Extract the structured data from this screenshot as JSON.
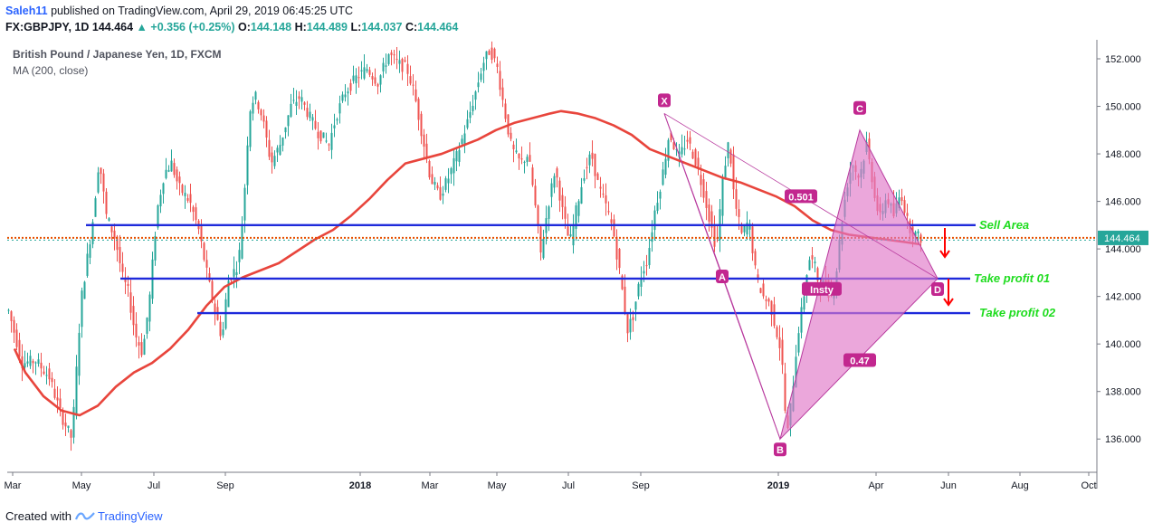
{
  "header": {
    "author": "Saleh11",
    "published_text": "published on TradingView.com, April 29, 2019 06:45:25 UTC",
    "symbol": "FX:GBPJPY, 1D",
    "last": "144.464",
    "change": "+0.356 (+0.25%)",
    "open_label": "O:",
    "open": "144.148",
    "high_label": "H:",
    "high": "144.489",
    "low_label": "L:",
    "low": "144.037",
    "close_label": "C:",
    "close": "144.464"
  },
  "legend": {
    "instrument": "British Pound / Japanese Yen, 1D, FXCM",
    "indicator": "MA (200, close)"
  },
  "footer": {
    "created_with": "Created with",
    "brand": "TradingView"
  },
  "colors": {
    "up_candle": "#26a69a",
    "down_candle": "#ef5350",
    "ma": "#e8453c",
    "level_line": "#1e2adb",
    "pattern_fill": "#e078c8",
    "pattern_stroke": "#b83a9e",
    "label_bg": "#c2278f",
    "annotation_green": "#1fdc1f",
    "price_dotted": "#e65100",
    "price_badge": "#26a69a"
  },
  "chart_data": {
    "type": "candlestick",
    "ylim": [
      134.6,
      152.8
    ],
    "y_ticks": [
      "136.000",
      "138.000",
      "140.000",
      "142.000",
      "144.000",
      "146.000",
      "148.000",
      "150.000",
      "152.000"
    ],
    "x_ticks": [
      "Mar",
      "May",
      "Jul",
      "Sep",
      "2018",
      "Mar",
      "May",
      "Jul",
      "Sep",
      "2019",
      "Apr",
      "Jun",
      "Aug",
      "Oct"
    ],
    "last_price": 144.464,
    "last_price_label": "144.464",
    "price_path": [
      [
        0,
        141.4
      ],
      [
        15,
        139.2
      ],
      [
        30,
        139.3
      ],
      [
        45,
        138.6
      ],
      [
        58,
        137.0
      ],
      [
        70,
        136.0
      ],
      [
        80,
        141.8
      ],
      [
        93,
        145.2
      ],
      [
        100,
        147.8
      ],
      [
        108,
        145.4
      ],
      [
        118,
        144.4
      ],
      [
        126,
        142.8
      ],
      [
        132,
        142.2
      ],
      [
        140,
        140.4
      ],
      [
        148,
        139.6
      ],
      [
        156,
        142.0
      ],
      [
        164,
        145.6
      ],
      [
        172,
        147.2
      ],
      [
        180,
        147.6
      ],
      [
        188,
        146.6
      ],
      [
        200,
        146.0
      ],
      [
        210,
        144.8
      ],
      [
        220,
        142.8
      ],
      [
        228,
        141.4
      ],
      [
        236,
        140.2
      ],
      [
        242,
        142.6
      ],
      [
        248,
        143.0
      ],
      [
        254,
        143.4
      ],
      [
        260,
        146.0
      ],
      [
        266,
        149.8
      ],
      [
        272,
        150.5
      ],
      [
        280,
        149.6
      ],
      [
        290,
        147.6
      ],
      [
        300,
        148.4
      ],
      [
        312,
        150.0
      ],
      [
        322,
        150.4
      ],
      [
        332,
        149.6
      ],
      [
        342,
        148.9
      ],
      [
        354,
        148.4
      ],
      [
        362,
        149.6
      ],
      [
        372,
        150.6
      ],
      [
        384,
        151.2
      ],
      [
        396,
        151.6
      ],
      [
        408,
        151.0
      ],
      [
        420,
        152.2
      ],
      [
        430,
        151.8
      ],
      [
        440,
        151.6
      ],
      [
        448,
        150.6
      ],
      [
        456,
        149.0
      ],
      [
        466,
        147.0
      ],
      [
        476,
        146.2
      ],
      [
        486,
        147.0
      ],
      [
        496,
        148.0
      ],
      [
        506,
        149.2
      ],
      [
        516,
        150.6
      ],
      [
        524,
        151.8
      ],
      [
        532,
        152.4
      ],
      [
        540,
        151.6
      ],
      [
        548,
        149.8
      ],
      [
        556,
        148.2
      ],
      [
        566,
        147.6
      ],
      [
        574,
        148.0
      ],
      [
        580,
        146.4
      ],
      [
        588,
        143.8
      ],
      [
        596,
        145.8
      ],
      [
        604,
        147.4
      ],
      [
        612,
        145.6
      ],
      [
        620,
        144.2
      ],
      [
        628,
        145.8
      ],
      [
        636,
        147.2
      ],
      [
        644,
        148.0
      ],
      [
        652,
        146.6
      ],
      [
        660,
        145.8
      ],
      [
        668,
        144.8
      ],
      [
        676,
        142.8
      ],
      [
        684,
        140.6
      ],
      [
        690,
        141.2
      ],
      [
        698,
        142.8
      ],
      [
        706,
        143.6
      ],
      [
        714,
        145.6
      ],
      [
        722,
        147.0
      ],
      [
        730,
        148.9
      ],
      [
        740,
        147.8
      ],
      [
        750,
        148.6
      ],
      [
        760,
        147.6
      ],
      [
        768,
        146.4
      ],
      [
        776,
        145.0
      ],
      [
        782,
        144.0
      ],
      [
        790,
        147.2
      ],
      [
        796,
        148.6
      ],
      [
        802,
        146.0
      ],
      [
        810,
        144.6
      ],
      [
        818,
        145.2
      ],
      [
        826,
        142.8
      ],
      [
        834,
        142.0
      ],
      [
        842,
        141.6
      ],
      [
        848,
        140.6
      ],
      [
        854,
        139.6
      ],
      [
        860,
        136.0
      ],
      [
        866,
        138.0
      ],
      [
        872,
        140.4
      ],
      [
        878,
        141.8
      ],
      [
        884,
        143.6
      ],
      [
        890,
        143.4
      ],
      [
        896,
        142.4
      ],
      [
        902,
        142.6
      ],
      [
        908,
        142.0
      ],
      [
        914,
        142.8
      ],
      [
        920,
        145.0
      ],
      [
        926,
        146.6
      ],
      [
        932,
        147.6
      ],
      [
        940,
        147.0
      ],
      [
        948,
        148.4
      ],
      [
        954,
        147.0
      ],
      [
        962,
        145.2
      ],
      [
        970,
        146.2
      ],
      [
        978,
        145.4
      ],
      [
        986,
        146.4
      ],
      [
        994,
        145.0
      ],
      [
        1002,
        144.6
      ],
      [
        1008,
        144.46
      ]
    ],
    "ma_200": [
      [
        8,
        139.8
      ],
      [
        20,
        138.8
      ],
      [
        40,
        137.8
      ],
      [
        60,
        137.2
      ],
      [
        80,
        137.0
      ],
      [
        100,
        137.4
      ],
      [
        120,
        138.2
      ],
      [
        140,
        138.8
      ],
      [
        160,
        139.2
      ],
      [
        180,
        139.8
      ],
      [
        200,
        140.6
      ],
      [
        220,
        141.6
      ],
      [
        240,
        142.4
      ],
      [
        260,
        142.8
      ],
      [
        280,
        143.1
      ],
      [
        300,
        143.4
      ],
      [
        320,
        143.9
      ],
      [
        340,
        144.4
      ],
      [
        360,
        144.8
      ],
      [
        380,
        145.4
      ],
      [
        400,
        146.1
      ],
      [
        420,
        146.9
      ],
      [
        440,
        147.6
      ],
      [
        460,
        147.8
      ],
      [
        480,
        148.0
      ],
      [
        500,
        148.3
      ],
      [
        520,
        148.6
      ],
      [
        540,
        149.0
      ],
      [
        560,
        149.3
      ],
      [
        580,
        149.5
      ],
      [
        600,
        149.7
      ],
      [
        612,
        149.8
      ],
      [
        630,
        149.7
      ],
      [
        650,
        149.5
      ],
      [
        670,
        149.2
      ],
      [
        690,
        148.8
      ],
      [
        710,
        148.2
      ],
      [
        730,
        147.9
      ],
      [
        750,
        147.6
      ],
      [
        770,
        147.3
      ],
      [
        790,
        147.0
      ],
      [
        810,
        146.8
      ],
      [
        830,
        146.5
      ],
      [
        850,
        146.2
      ],
      [
        870,
        145.8
      ],
      [
        890,
        145.2
      ],
      [
        910,
        144.8
      ],
      [
        930,
        144.6
      ],
      [
        950,
        144.5
      ],
      [
        970,
        144.4
      ],
      [
        990,
        144.3
      ],
      [
        1008,
        144.2
      ]
    ],
    "levels": [
      {
        "name": "sell-area",
        "label": "Sell Area",
        "y": 145.0,
        "x_from": 95,
        "x_to": 1078
      },
      {
        "name": "take-profit-01",
        "label": "Take profit 01",
        "y": 142.75,
        "x_from": 133,
        "x_to": 1072
      },
      {
        "name": "take-profit-02",
        "label": "Take profit 02",
        "y": 141.3,
        "x_from": 218,
        "x_to": 1072
      }
    ],
    "pattern_points": {
      "X": [
        734,
        149.7
      ],
      "A": [
        798,
        142.9
      ],
      "B": [
        862,
        136.0
      ],
      "C": [
        950,
        149.0
      ],
      "D": [
        1036,
        142.75
      ]
    },
    "pattern_labels": {
      "X": "X",
      "A": "A",
      "B": "B",
      "C": "C",
      "D": "D"
    },
    "ratios": [
      {
        "text": "0.501",
        "at": [
          885,
          146.2
        ]
      },
      {
        "text": "0.47",
        "at": [
          950,
          139.3
        ]
      }
    ],
    "other_labels": [
      {
        "text": "Insty",
        "at": [
          908,
          142.3
        ]
      }
    ]
  }
}
